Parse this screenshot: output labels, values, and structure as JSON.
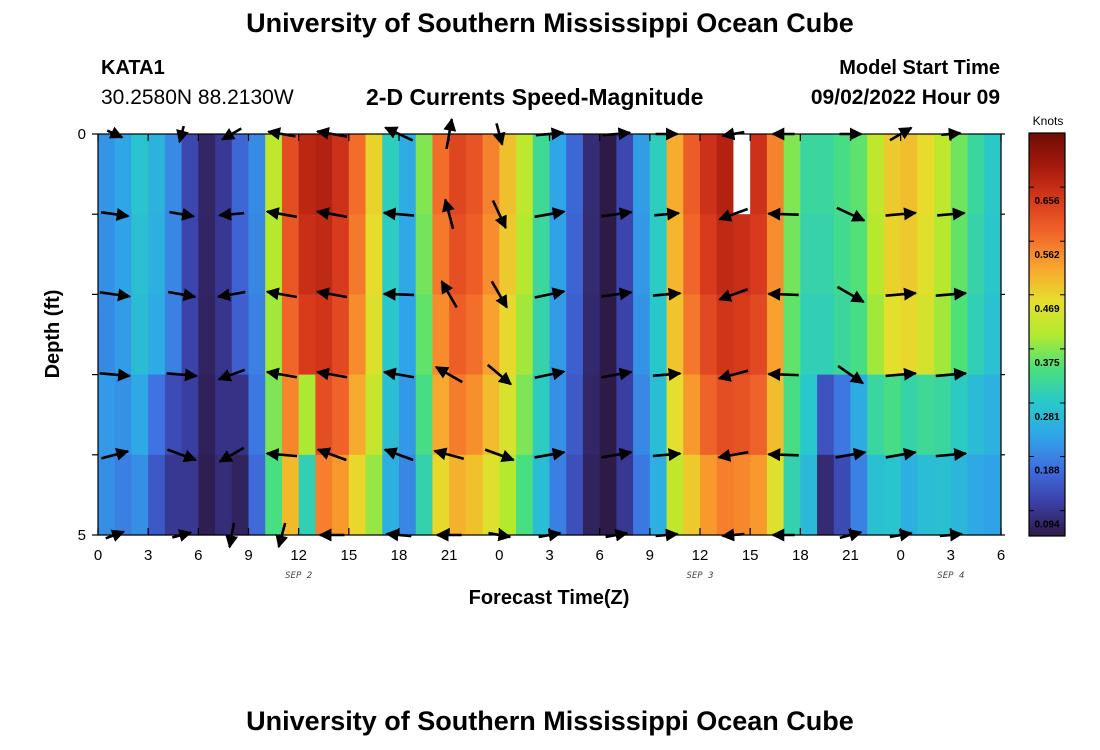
{
  "title": "University of Southern Mississippi Ocean Cube",
  "footer_title": "University of Southern Mississippi Ocean Cube",
  "station": {
    "id": "KATA1",
    "coords": "30.2580N  88.2130W"
  },
  "model_start": {
    "label": "Model Start Time",
    "value": "09/02/2022 Hour 09"
  },
  "chart_data": {
    "type": "heatmap",
    "title": "2-D Currents Speed-Magnitude",
    "xlabel": "Forecast Time(Z)",
    "ylabel": "Depth (ft)",
    "colorbar_label": "Knots",
    "colorbar_ticks": [
      "0.656",
      "0.562",
      "0.469",
      "0.375",
      "0.281",
      "0.188",
      "0.094"
    ],
    "colorbar_values": [
      0.656,
      0.562,
      0.469,
      0.375,
      0.281,
      0.188,
      0.094
    ],
    "colorbar_range": [
      0.05,
      0.75
    ],
    "colormap": [
      "#2e1a47",
      "#3b3fa6",
      "#3f6fe0",
      "#2fa6e8",
      "#29c9c9",
      "#4be07a",
      "#b3ea2e",
      "#e6de2c",
      "#f9a52e",
      "#f2662a",
      "#d73a1c",
      "#a6190d",
      "#6e0d05"
    ],
    "x_tick_labels": [
      "0",
      "3",
      "6",
      "9",
      "12",
      "15",
      "18",
      "21",
      "0",
      "3",
      "6",
      "9",
      "12",
      "15",
      "18",
      "21",
      "0",
      "3",
      "6"
    ],
    "x_hours": [
      0,
      3,
      6,
      9,
      12,
      15,
      18,
      21,
      24,
      27,
      30,
      33,
      36,
      39,
      42,
      45,
      48,
      51,
      54
    ],
    "x_range_hours": [
      0,
      54
    ],
    "date_labels": [
      {
        "text": "SEP 2",
        "hour": 12
      },
      {
        "text": "SEP 3",
        "hour": 36
      },
      {
        "text": "SEP 4",
        "hour": 51
      }
    ],
    "y_tick_labels": [
      "0",
      "5"
    ],
    "y_range": [
      0,
      5
    ],
    "depth_levels": [
      0,
      1,
      2,
      3,
      4,
      5
    ],
    "time_hours": [
      0,
      1,
      2,
      3,
      4,
      5,
      6,
      7,
      8,
      9,
      10,
      11,
      12,
      13,
      14,
      15,
      16,
      17,
      18,
      19,
      20,
      21,
      22,
      23,
      24,
      25,
      26,
      27,
      28,
      29,
      30,
      31,
      32,
      33,
      34,
      35,
      36,
      37,
      38,
      39,
      40,
      41,
      42,
      43,
      44,
      45,
      46,
      47,
      48,
      49,
      50,
      51,
      52,
      53
    ],
    "speed_profile": [
      0.21,
      0.23,
      0.28,
      0.25,
      0.2,
      0.12,
      0.07,
      0.1,
      0.16,
      0.2,
      0.42,
      0.62,
      0.68,
      0.69,
      0.66,
      0.58,
      0.48,
      0.3,
      0.24,
      0.38,
      0.58,
      0.63,
      0.61,
      0.56,
      0.5,
      0.42,
      0.33,
      0.23,
      0.16,
      0.08,
      0.05,
      0.12,
      0.22,
      0.3,
      0.52,
      0.6,
      0.66,
      0.69,
      0.68,
      0.66,
      0.56,
      0.38,
      0.32,
      0.32,
      0.34,
      0.36,
      0.42,
      0.49,
      0.5,
      0.47,
      0.42,
      0.37,
      0.32,
      0.29
    ],
    "depth_factors": [
      0.98,
      0.96,
      0.93,
      0.88,
      0.8
    ],
    "speed_offsets": [
      [
        0,
        1.2
      ],
      [
        1,
        1.0
      ],
      [
        2,
        0.9
      ],
      [
        3,
        0.7
      ],
      [
        4,
        0.6
      ],
      [
        8,
        0.5
      ],
      [
        12,
        0.55
      ],
      [
        43,
        0.3
      ],
      [
        44,
        0.45
      ],
      [
        45,
        0.65
      ],
      [
        46,
        0.8
      ],
      [
        47,
        0.7
      ],
      [
        48,
        0.6
      ],
      [
        49,
        0.7
      ],
      [
        50,
        0.8
      ],
      [
        51,
        0.85
      ],
      [
        52,
        0.9
      ],
      [
        53,
        0.95
      ]
    ],
    "missing_cells": [
      {
        "hour": 38,
        "depth_level": 0
      }
    ],
    "vector_hours": [
      1,
      5,
      8,
      11,
      14,
      18,
      21,
      24,
      27,
      31,
      34,
      38,
      41,
      45,
      48,
      51
    ],
    "vector_depths": [
      0,
      1,
      2,
      3,
      4,
      5
    ],
    "vector_angles_deg": [
      [
        -25,
        -8,
        -8,
        -5,
        15,
        20
      ],
      [
        -105,
        -10,
        -10,
        -5,
        -20,
        15
      ],
      [
        -150,
        -175,
        -170,
        -160,
        -150,
        -100
      ],
      [
        170,
        170,
        170,
        170,
        175,
        -105
      ],
      [
        170,
        170,
        170,
        170,
        160,
        180
      ],
      [
        155,
        175,
        178,
        170,
        160,
        175
      ],
      [
        80,
        105,
        120,
        150,
        165,
        180
      ],
      [
        -75,
        -65,
        -60,
        -40,
        -20,
        -10
      ],
      [
        5,
        10,
        12,
        12,
        10,
        10
      ],
      [
        5,
        8,
        8,
        10,
        10,
        10
      ],
      [
        0,
        5,
        5,
        5,
        5,
        5
      ],
      [
        -170,
        -160,
        -160,
        -165,
        -170,
        -175
      ],
      [
        180,
        178,
        178,
        178,
        178,
        180
      ],
      [
        0,
        -25,
        -30,
        -35,
        10,
        15
      ],
      [
        30,
        5,
        5,
        5,
        10,
        10
      ],
      [
        5,
        5,
        5,
        5,
        5,
        5
      ]
    ],
    "vector_lengths_knots": [
      [
        0.3,
        0.5,
        0.55,
        0.55,
        0.5,
        0.35
      ],
      [
        0.3,
        0.45,
        0.5,
        0.55,
        0.55,
        0.35
      ],
      [
        0.4,
        0.45,
        0.5,
        0.5,
        0.5,
        0.45
      ],
      [
        0.5,
        0.55,
        0.55,
        0.55,
        0.55,
        0.45
      ],
      [
        0.55,
        0.55,
        0.55,
        0.55,
        0.55,
        0.45
      ],
      [
        0.55,
        0.55,
        0.55,
        0.55,
        0.55,
        0.45
      ],
      [
        0.55,
        0.55,
        0.55,
        0.55,
        0.55,
        0.45
      ],
      [
        0.4,
        0.55,
        0.55,
        0.55,
        0.55,
        0.4
      ],
      [
        0.5,
        0.55,
        0.55,
        0.55,
        0.55,
        0.4
      ],
      [
        0.5,
        0.55,
        0.55,
        0.55,
        0.55,
        0.4
      ],
      [
        0.4,
        0.45,
        0.5,
        0.5,
        0.5,
        0.4
      ],
      [
        0.4,
        0.55,
        0.55,
        0.55,
        0.55,
        0.4
      ],
      [
        0.4,
        0.55,
        0.55,
        0.55,
        0.55,
        0.4
      ],
      [
        0.4,
        0.55,
        0.55,
        0.55,
        0.55,
        0.4
      ],
      [
        0.45,
        0.55,
        0.55,
        0.55,
        0.55,
        0.4
      ],
      [
        0.35,
        0.5,
        0.55,
        0.55,
        0.55,
        0.4
      ]
    ],
    "grid": false,
    "legend": "right colorbar"
  }
}
